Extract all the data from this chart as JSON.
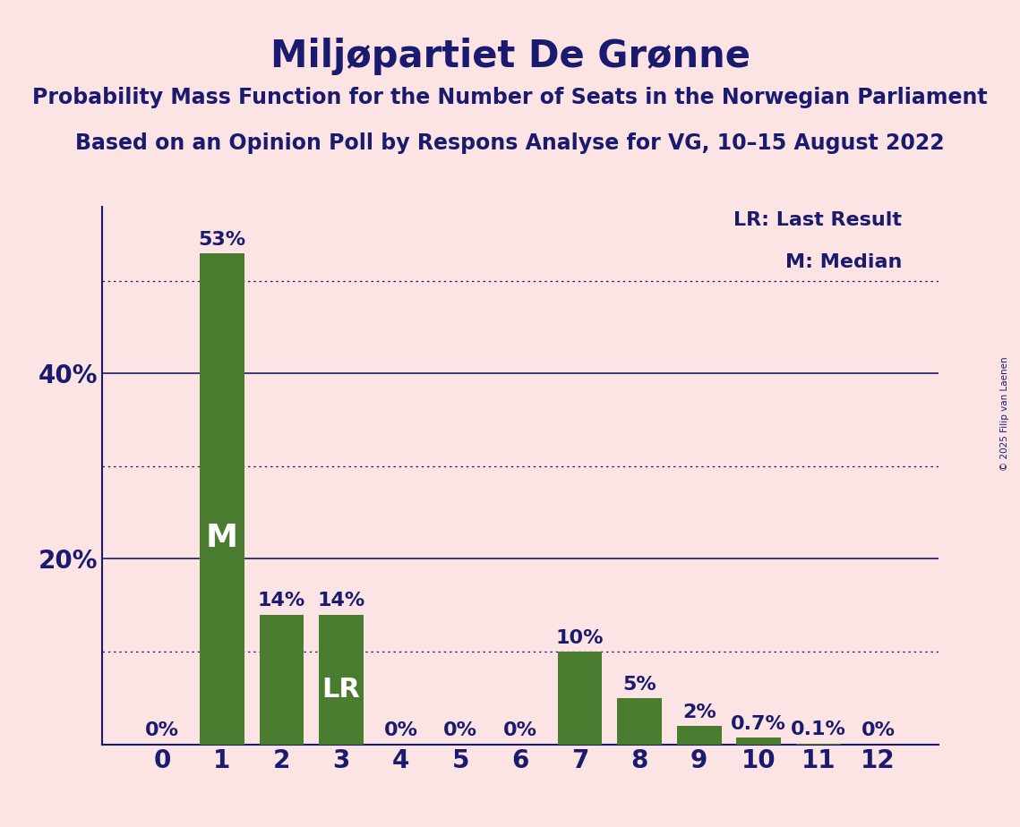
{
  "title": "Miljøpartiet De Grønne",
  "subtitle1": "Probability Mass Function for the Number of Seats in the Norwegian Parliament",
  "subtitle2": "Based on an Opinion Poll by Respons Analyse for VG, 10–15 August 2022",
  "copyright": "© 2025 Filip van Laenen",
  "categories": [
    0,
    1,
    2,
    3,
    4,
    5,
    6,
    7,
    8,
    9,
    10,
    11,
    12
  ],
  "values": [
    0.0,
    53.0,
    14.0,
    14.0,
    0.0,
    0.0,
    0.0,
    10.0,
    5.0,
    2.0,
    0.7,
    0.1,
    0.0
  ],
  "bar_labels": [
    "0%",
    "53%",
    "14%",
    "14%",
    "0%",
    "0%",
    "0%",
    "10%",
    "5%",
    "2%",
    "0.7%",
    "0.1%",
    "0%"
  ],
  "bar_color": "#4a7c2f",
  "background_color": "#fce4e4",
  "text_color": "#1a1a6e",
  "bar_label_inside_color": "#ffffff",
  "median_bar": 1,
  "last_result_bar": 3,
  "legend_lr": "LR: Last Result",
  "legend_m": "M: Median",
  "solid_gridlines": [
    20,
    40
  ],
  "dotted_gridlines": [
    10,
    30,
    50
  ],
  "ylim": [
    0,
    58
  ],
  "title_fontsize": 30,
  "subtitle_fontsize": 17,
  "axis_label_fontsize": 20,
  "bar_label_fontsize": 16,
  "legend_fontsize": 16,
  "inside_label_fontsize": 26,
  "lr_label_fontsize": 22
}
